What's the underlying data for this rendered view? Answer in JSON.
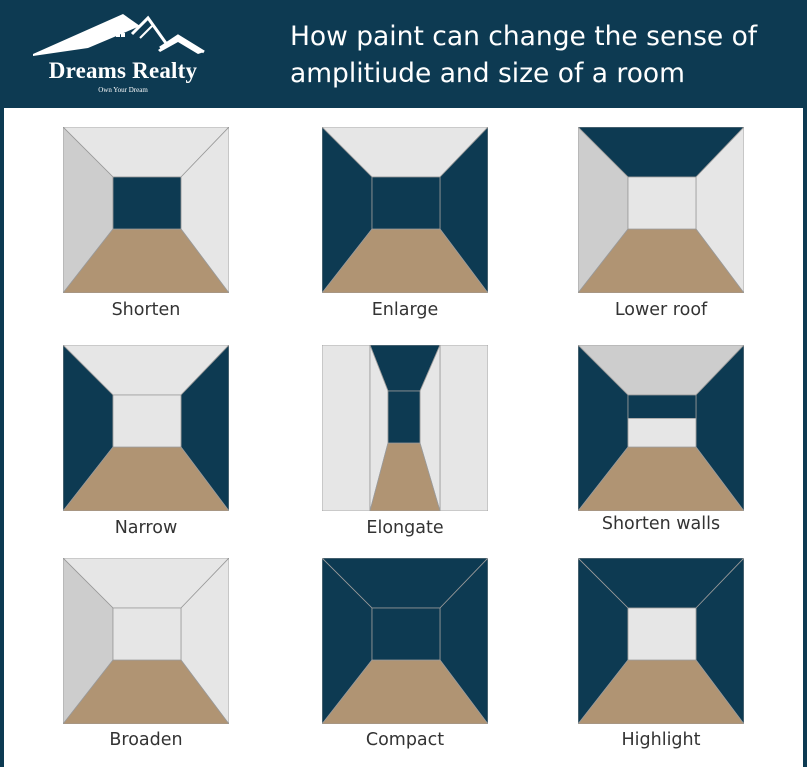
{
  "brand": {
    "name": "Dreams Realty",
    "tagline": "Own Your Dream"
  },
  "headline": {
    "line1": "How paint can change the sense of",
    "line2": "amplitiude and size of a room"
  },
  "colors": {
    "header_bg": "#0d3a52",
    "dark_wall": "#0d3a52",
    "light_wall": "#e6e6e6",
    "mid_wall": "#cdcdcd",
    "floor": "#b09473",
    "panel_bg": "#ffffff"
  },
  "rooms": [
    {
      "label": "Shorten",
      "ceiling": "light",
      "left": "mid",
      "right": "light",
      "back": "dark",
      "floor": "floor"
    },
    {
      "label": "Enlarge",
      "ceiling": "light",
      "left": "dark",
      "right": "dark",
      "back": "dark",
      "floor": "floor"
    },
    {
      "label": "Lower roof",
      "ceiling": "dark",
      "left": "mid",
      "right": "light",
      "back": "light",
      "floor": "floor"
    },
    {
      "label": "Narrow",
      "ceiling": "light",
      "left": "dark",
      "right": "dark",
      "back": "light",
      "floor": "floor"
    },
    {
      "label": "Elongate",
      "ceiling": "dark",
      "left": "light",
      "right": "light",
      "back": "dark",
      "floor": "floor"
    },
    {
      "label": "Shorten walls",
      "ceiling": "mid",
      "left": "dark",
      "right": "dark",
      "back": "split",
      "floor": "floor"
    },
    {
      "label": "Broaden",
      "ceiling": "light",
      "left": "mid",
      "right": "light",
      "back": "light",
      "floor": "floor"
    },
    {
      "label": "Compact",
      "ceiling": "dark",
      "left": "dark",
      "right": "dark",
      "back": "dark",
      "floor": "floor"
    },
    {
      "label": "Highlight",
      "ceiling": "dark",
      "left": "dark",
      "right": "dark",
      "back": "light",
      "floor": "floor"
    }
  ]
}
